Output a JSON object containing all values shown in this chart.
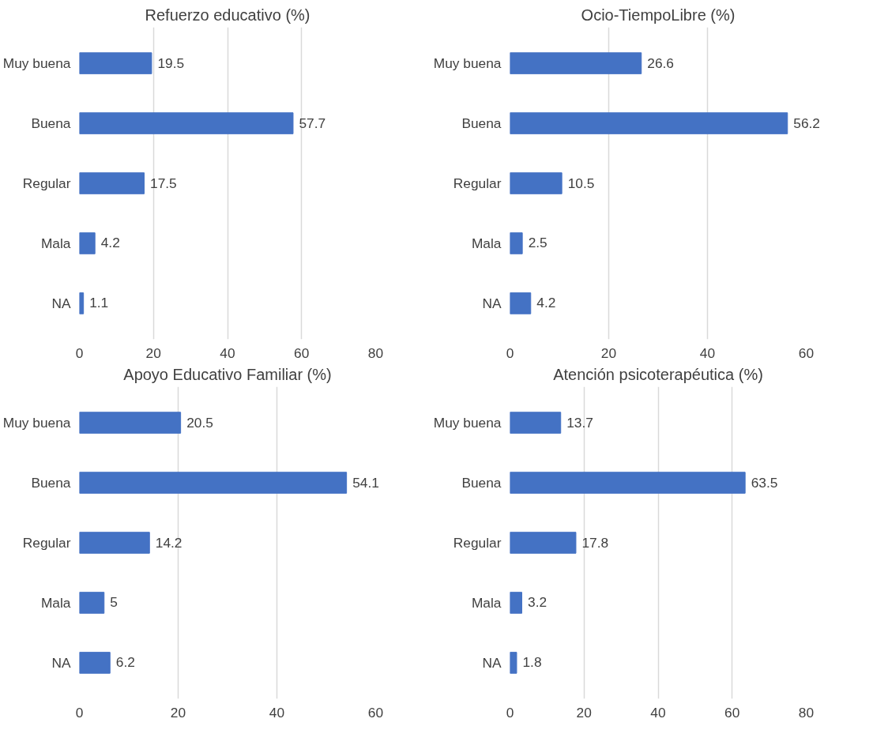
{
  "chart_data": [
    {
      "type": "bar",
      "orientation": "horizontal",
      "title": "Refuerzo educativo (%)",
      "categories": [
        "Muy buena",
        "Buena",
        "Regular",
        "Mala",
        "NA"
      ],
      "values": [
        19.5,
        57.7,
        17.5,
        4.2,
        1.1
      ],
      "color": "#4472c4",
      "xlim": [
        0,
        80
      ],
      "xticks": [
        0,
        20,
        40,
        60,
        80
      ],
      "grid": "x",
      "data_labels": true
    },
    {
      "type": "bar",
      "orientation": "horizontal",
      "title": "Ocio-TiempoLibre (%)",
      "categories": [
        "Muy buena",
        "Buena",
        "Regular",
        "Mala",
        "NA"
      ],
      "values": [
        26.6,
        56.2,
        10.5,
        2.5,
        4.2
      ],
      "color": "#4472c4",
      "xlim": [
        0,
        60
      ],
      "xticks": [
        0,
        20,
        40,
        60
      ],
      "grid": "x",
      "data_labels": true
    },
    {
      "type": "bar",
      "orientation": "horizontal",
      "title": "Apoyo Educativo Familiar (%)",
      "categories": [
        "Muy buena",
        "Buena",
        "Regular",
        "Mala",
        "NA"
      ],
      "values": [
        20.5,
        54.1,
        14.2,
        5,
        6.2
      ],
      "color": "#4472c4",
      "xlim": [
        0,
        60
      ],
      "xticks": [
        0,
        20,
        40,
        60
      ],
      "grid": "x",
      "data_labels": true
    },
    {
      "type": "bar",
      "orientation": "horizontal",
      "title": "Atención psicoterapéutica (%)",
      "categories": [
        "Muy buena",
        "Buena",
        "Regular",
        "Mala",
        "NA"
      ],
      "values": [
        13.7,
        63.5,
        17.8,
        3.2,
        1.8
      ],
      "color": "#4472c4",
      "xlim": [
        0,
        80
      ],
      "xticks": [
        0,
        20,
        40,
        60,
        80
      ],
      "grid": "x",
      "data_labels": true
    }
  ]
}
